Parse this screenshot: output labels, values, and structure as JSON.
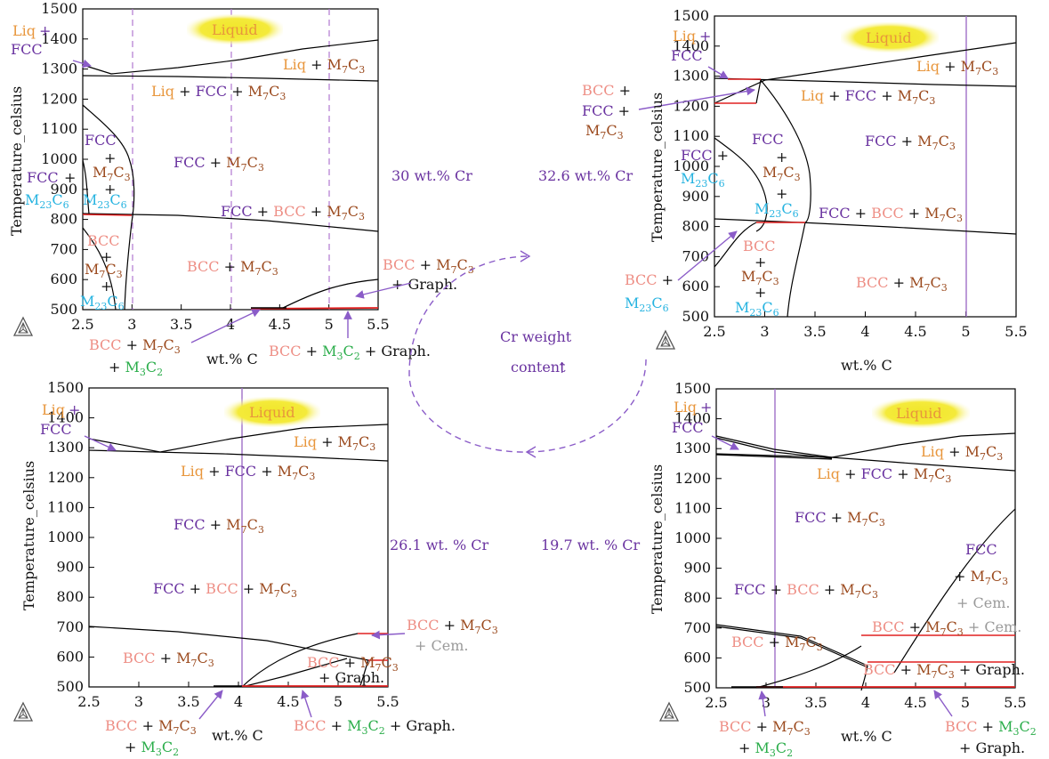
{
  "colors": {
    "liq": "#e8963c",
    "fcc": "#6a33a0",
    "bcc": "#ee8f86",
    "m7c3": "#9b4a1e",
    "m23c6": "#26b3e0",
    "m3c2": "#2aad4a",
    "cem": "#9a9a9a",
    "graph": "#111111",
    "redline": "#e02020",
    "purple_line": "#8b5cc8",
    "liquid_bg": "#f0e62a"
  },
  "icons": [
    "thermo-calc-triangle-icon"
  ],
  "chart_data": [
    {
      "type": "diagram",
      "panel": "30 wt.% Cr",
      "caption": "30 wt.% Cr",
      "xlabel": "wt.% C",
      "ylabel": "Temperature_celsius",
      "xlim": [
        2.5,
        5.5
      ],
      "ylim": [
        500,
        1500
      ],
      "xticks": [
        "2.5",
        "3",
        "3.5",
        "4",
        "4.5",
        "5",
        "5.5"
      ],
      "yticks": [
        "500",
        "600",
        "700",
        "800",
        "900",
        "1000",
        "1100",
        "1200",
        "1300",
        "1400",
        "1500"
      ],
      "dashed_vertical_lines": [
        3,
        4,
        5
      ],
      "regions": {
        "liquid": "Liquid",
        "liq_fcc": [
          "Liq",
          "+",
          "FCC"
        ],
        "liq_m7c3": [
          "Liq",
          " + ",
          "M",
          "7",
          "C",
          "3"
        ],
        "liq_fcc_m7c3": [
          "Liq",
          " + ",
          "FCC",
          " + ",
          "M",
          "7",
          "C",
          "3"
        ],
        "fcc_stack": [
          "FCC",
          "+",
          "M",
          "7",
          "C",
          "3",
          "+",
          "M",
          "23",
          "C",
          "6"
        ],
        "fcc_plus": [
          "FCC",
          " +"
        ],
        "m23c6_left": [
          "M",
          "23",
          "C",
          "6"
        ],
        "fcc_m7c3": [
          "FCC",
          " + ",
          "M",
          "7",
          "C",
          "3"
        ],
        "fcc_bcc_m7c3": [
          "FCC",
          " + ",
          "BCC",
          " + ",
          "M",
          "7",
          "C",
          "3"
        ],
        "bcc_stack": [
          "BCC",
          "+",
          "M",
          "7",
          "C",
          "3",
          "+",
          "M",
          "23",
          "C",
          "6"
        ],
        "bcc_m7c3": [
          "BCC",
          " + ",
          "M",
          "7",
          "C",
          "3"
        ],
        "bcc_m7c3_graph": [
          "BCC",
          " + ",
          "M",
          "7",
          "C",
          "3",
          "+ Graph."
        ],
        "bcc_m7c3_m3c2": [
          "BCC",
          " + ",
          "M",
          "7",
          "C",
          "3",
          "+ ",
          "M",
          "3",
          "C",
          "2"
        ],
        "bcc_m3c2_graph": [
          "BCC",
          " + ",
          "M",
          "3",
          "C",
          "2",
          " + Graph."
        ]
      }
    },
    {
      "type": "diagram",
      "panel": "32.6 wt.% Cr",
      "caption": "32.6 wt.% Cr",
      "xlabel": "wt.% C",
      "ylabel": "Temperature_celsius",
      "xlim": [
        2.5,
        5.5
      ],
      "ylim": [
        500,
        1500
      ],
      "xticks": [
        "2.5",
        "3",
        "3.5",
        "4",
        "4.5",
        "5",
        "5.5"
      ],
      "yticks": [
        "500",
        "600",
        "700",
        "800",
        "900",
        "1000",
        "1100",
        "1200",
        "1300",
        "1400",
        "1500"
      ],
      "solid_vertical_lines": [
        5
      ],
      "regions": {
        "liquid": "Liquid",
        "liq_fcc": [
          "Liq",
          "+",
          "FCC"
        ],
        "liq_m7c3": [
          "Liq",
          " + ",
          "M",
          "7",
          "C",
          "3"
        ],
        "liq_fcc_m7c3": [
          "Liq",
          " + ",
          "FCC",
          " + ",
          "M",
          "7",
          "C",
          "3"
        ],
        "bcc_fcc_m7c3": [
          "BCC",
          " +",
          "FCC",
          " +",
          "M",
          "7",
          "C",
          "3"
        ],
        "fcc_plus": [
          "FCC",
          " +"
        ],
        "m23c6_left": [
          "M",
          "23",
          "C",
          "6"
        ],
        "fcc_stack": [
          "FCC",
          "+",
          "M",
          "7",
          "C",
          "3",
          "+",
          "M",
          "23",
          "C",
          "6"
        ],
        "fcc_m7c3": [
          "FCC",
          " + ",
          "M",
          "7",
          "C",
          "3"
        ],
        "fcc_bcc_m7c3": [
          "FCC",
          " + ",
          "BCC",
          " + ",
          "M",
          "7",
          "C",
          "3"
        ],
        "bcc_plus": [
          "BCC",
          " +"
        ],
        "bcc_stack": [
          "BCC",
          "+",
          "M",
          "7",
          "C",
          "3",
          "+",
          "M",
          "23",
          "C",
          "6"
        ],
        "bcc_m7c3": [
          "BCC",
          " + ",
          "M",
          "7",
          "C",
          "3"
        ]
      }
    },
    {
      "type": "diagram",
      "panel": "26.1 wt.% Cr",
      "caption": "26.1 wt. % Cr",
      "xlabel": "wt.% C",
      "ylabel": "Temperature_celsius",
      "xlim": [
        2.5,
        5.5
      ],
      "ylim": [
        500,
        1500
      ],
      "xticks": [
        "2.5",
        "3",
        "3.5",
        "4",
        "4.5",
        "5",
        "5.5"
      ],
      "yticks": [
        "500",
        "600",
        "700",
        "800",
        "900",
        "1000",
        "1100",
        "1200",
        "1300",
        "1400",
        "1500"
      ],
      "solid_vertical_lines": [
        4
      ],
      "regions": {
        "liquid": "Liquid",
        "liq_fcc": [
          "Liq",
          "+",
          "FCC"
        ],
        "liq_m7c3": [
          "Liq",
          " + ",
          "M",
          "7",
          "C",
          "3"
        ],
        "liq_fcc_m7c3": [
          "Liq",
          " + ",
          "FCC",
          " + ",
          "M",
          "7",
          "C",
          "3"
        ],
        "fcc_m7c3": [
          "FCC",
          " + ",
          "M",
          "7",
          "C",
          "3"
        ],
        "fcc_bcc_m7c3": [
          "FCC",
          " + ",
          "BCC",
          " + ",
          "M",
          "7",
          "C",
          "3"
        ],
        "bcc_m7c3": [
          "BCC",
          " + ",
          "M",
          "7",
          "C",
          "3"
        ],
        "bcc_m7c3_cem": [
          "BCC",
          " + ",
          "M",
          "7",
          "C",
          "3",
          "+ Cem."
        ],
        "bcc_m7c3_graph": [
          "BCC",
          " + ",
          "M",
          "7",
          "C",
          "3",
          "+ Graph."
        ],
        "bcc_m7c3_m3c2": [
          "BCC",
          " + ",
          "M",
          "7",
          "C",
          "3",
          "+ ",
          "M",
          "3",
          "C",
          "2"
        ],
        "bcc_m3c2_graph": [
          "BCC",
          " + ",
          "M",
          "3",
          "C",
          "2",
          " + Graph."
        ]
      }
    },
    {
      "type": "diagram",
      "panel": "19.7 wt.% Cr",
      "caption": "19.7 wt. % Cr",
      "xlabel": "wt.% C",
      "ylabel": "Temperature_celsius",
      "xlim": [
        2.5,
        5.5
      ],
      "ylim": [
        500,
        1500
      ],
      "xticks": [
        "2.5",
        "3",
        "3.5",
        "4",
        "4.5",
        "5",
        "5.5"
      ],
      "yticks": [
        "500",
        "600",
        "700",
        "800",
        "900",
        "1000",
        "1100",
        "1200",
        "1300",
        "1400",
        "1500"
      ],
      "solid_vertical_lines": [
        3
      ],
      "regions": {
        "liquid": "Liquid",
        "liq_fcc": [
          "Liq",
          "+",
          "FCC"
        ],
        "liq_m7c3": [
          "Liq",
          " + ",
          "M",
          "7",
          "C",
          "3"
        ],
        "liq_fcc_m7c3": [
          "Liq",
          " + ",
          "FCC",
          " + ",
          "M",
          "7",
          "C",
          "3"
        ],
        "fcc_m7c3": [
          "FCC",
          " + ",
          "M",
          "7",
          "C",
          "3"
        ],
        "fcc_m7c3_cem": [
          "FCC",
          "+ ",
          "M",
          "7",
          "C",
          "3",
          "+ Cem."
        ],
        "fcc_bcc_m7c3": [
          "FCC",
          " + ",
          "BCC",
          " + ",
          "M",
          "7",
          "C",
          "3"
        ],
        "bcc_m7c3": [
          "BCC",
          " + ",
          "M",
          "7",
          "C",
          "3"
        ],
        "bcc_m7c3_cem": [
          "BCC",
          " + ",
          "M",
          "7",
          "C",
          "3",
          " + Cem."
        ],
        "bcc_m7c3_graph": [
          "BCC",
          " + ",
          "M",
          "7",
          "C",
          "3",
          " + Graph."
        ],
        "bcc_m7c3_m3c2": [
          "BCC",
          " + ",
          "M",
          "7",
          "C",
          "3",
          "+ ",
          "M",
          "3",
          "C",
          "2"
        ],
        "bcc_m3c2_graph": [
          "BCC",
          " + ",
          "M",
          "3",
          "C",
          "2",
          "+ Graph."
        ]
      }
    }
  ],
  "center": {
    "title_line1": "Cr weight",
    "title_line2": "content",
    "arrow": "↑"
  }
}
